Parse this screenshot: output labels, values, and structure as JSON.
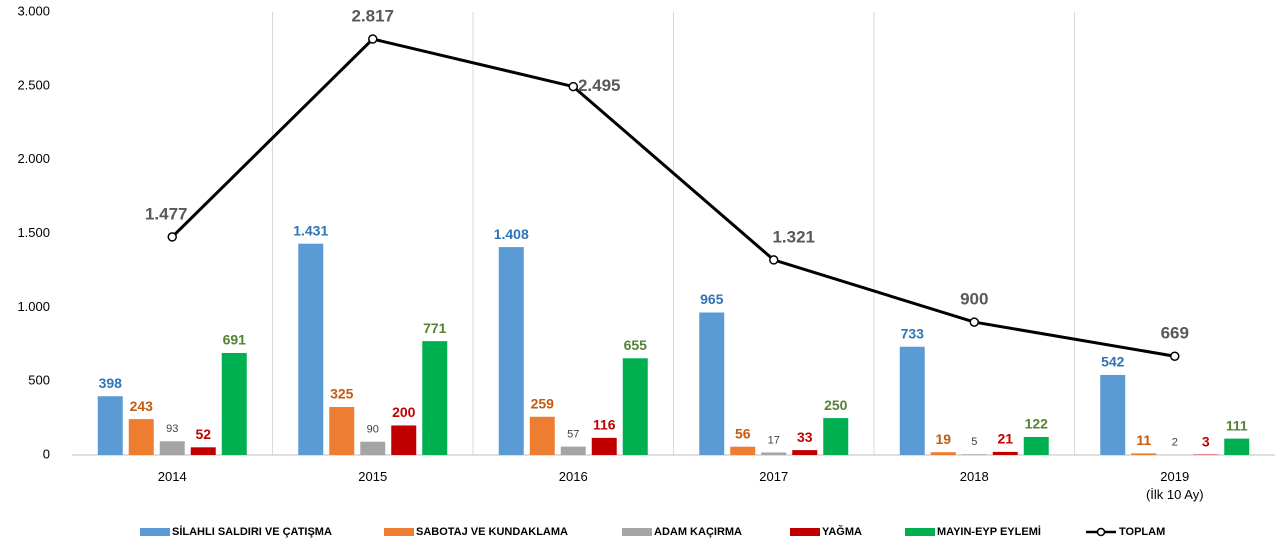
{
  "chart_data": {
    "type": "bar",
    "categories": [
      "2014",
      "2015",
      "2016",
      "2017",
      "2018",
      "2019\n(İlk 10 Ay)"
    ],
    "ylim": [
      0,
      3000
    ],
    "yticks": [
      0,
      500,
      {
        "value": 1000,
        "label": "1.000"
      },
      {
        "value": 1500,
        "label": "1.500"
      },
      {
        "value": 2000,
        "label": "2.000"
      },
      {
        "value": 2500,
        "label": "2.500"
      },
      {
        "value": 3000,
        "label": "3.000"
      }
    ],
    "vertical_grid": true,
    "legend": "bottom",
    "series": [
      {
        "name": "SİLAHLI SALDIRI VE ÇATIŞMA",
        "type": "bar",
        "color": "#5b9bd5",
        "label_color": "#2e75b6",
        "values": [
          398,
          1431,
          1408,
          965,
          733,
          542
        ],
        "value_labels": [
          "398",
          "1.431",
          "1.408",
          "965",
          "733",
          "542"
        ]
      },
      {
        "name": "SABOTAJ VE KUNDAKLAMA",
        "type": "bar",
        "color": "#ed7d31",
        "label_color": "#c55a11",
        "values": [
          243,
          325,
          259,
          56,
          19,
          11
        ]
      },
      {
        "name": "ADAM KAÇIRMA",
        "type": "bar",
        "color": "#a5a5a5",
        "label_color": "#404040",
        "values": [
          93,
          90,
          57,
          17,
          5,
          2
        ]
      },
      {
        "name": "YAĞMA",
        "type": "bar",
        "color": "#c00000",
        "label_color": "#c00000",
        "values": [
          52,
          200,
          116,
          33,
          21,
          3
        ]
      },
      {
        "name": "MAYIN-EYP EYLEMİ",
        "type": "bar",
        "color": "#00b050",
        "label_color": "#548235",
        "values": [
          691,
          771,
          655,
          250,
          122,
          111
        ]
      },
      {
        "name": "TOPLAM",
        "type": "line",
        "color": "#000000",
        "label_color": "#595959",
        "values": [
          1477,
          2817,
          2495,
          1321,
          900,
          669
        ],
        "value_labels": [
          "1.477",
          "2.817",
          "2.495",
          "1.321",
          "900",
          "669"
        ]
      }
    ]
  }
}
